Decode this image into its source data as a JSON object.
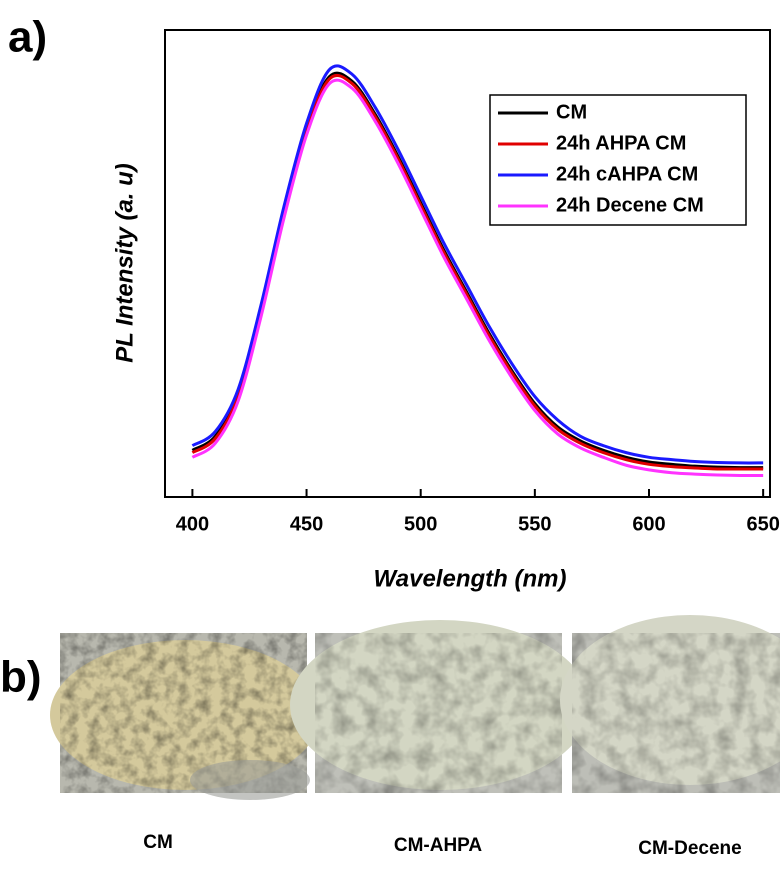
{
  "panel_a": "a)",
  "chart_data": {
    "type": "line",
    "xlabel": "Wavelength (nm)",
    "ylabel": "PL Intensity (a. u)",
    "x": [
      400,
      410,
      420,
      430,
      440,
      450,
      460,
      470,
      480,
      490,
      500,
      510,
      520,
      530,
      540,
      550,
      560,
      570,
      580,
      590,
      600,
      610,
      620,
      630,
      640,
      650
    ],
    "xlim": [
      388,
      653
    ],
    "xticks": [
      400,
      450,
      500,
      550,
      600,
      650
    ],
    "ylim": [
      0,
      1
    ],
    "legend": "upper right",
    "series": [
      {
        "name": "CM",
        "color": "#000000",
        "values": [
          0.1,
          0.13,
          0.22,
          0.4,
          0.61,
          0.79,
          0.9,
          0.89,
          0.82,
          0.73,
          0.63,
          0.53,
          0.44,
          0.35,
          0.27,
          0.2,
          0.15,
          0.12,
          0.1,
          0.085,
          0.075,
          0.07,
          0.066,
          0.064,
          0.063,
          0.063
        ]
      },
      {
        "name": "24h AHPA CM",
        "color": "#e00000",
        "values": [
          0.095,
          0.125,
          0.215,
          0.395,
          0.605,
          0.785,
          0.895,
          0.885,
          0.815,
          0.725,
          0.625,
          0.525,
          0.435,
          0.345,
          0.265,
          0.195,
          0.145,
          0.115,
          0.095,
          0.08,
          0.07,
          0.065,
          0.062,
          0.06,
          0.06,
          0.06
        ]
      },
      {
        "name": "24h cAHPA CM",
        "color": "#1a1aff",
        "values": [
          0.11,
          0.14,
          0.23,
          0.41,
          0.62,
          0.8,
          0.915,
          0.905,
          0.835,
          0.745,
          0.645,
          0.545,
          0.455,
          0.365,
          0.285,
          0.215,
          0.165,
          0.13,
          0.11,
          0.095,
          0.085,
          0.08,
          0.076,
          0.074,
          0.073,
          0.073
        ]
      },
      {
        "name": "24h Decene CM",
        "color": "#ff33ff",
        "values": [
          0.085,
          0.115,
          0.205,
          0.385,
          0.595,
          0.775,
          0.885,
          0.875,
          0.805,
          0.715,
          0.615,
          0.515,
          0.425,
          0.335,
          0.255,
          0.185,
          0.135,
          0.105,
          0.085,
          0.068,
          0.058,
          0.052,
          0.049,
          0.047,
          0.046,
          0.046
        ]
      }
    ]
  },
  "panel_b": {
    "label": "b)",
    "images": [
      {
        "caption": "CM"
      },
      {
        "caption": "CM-AHPA"
      },
      {
        "caption": "CM-Decene"
      }
    ]
  }
}
